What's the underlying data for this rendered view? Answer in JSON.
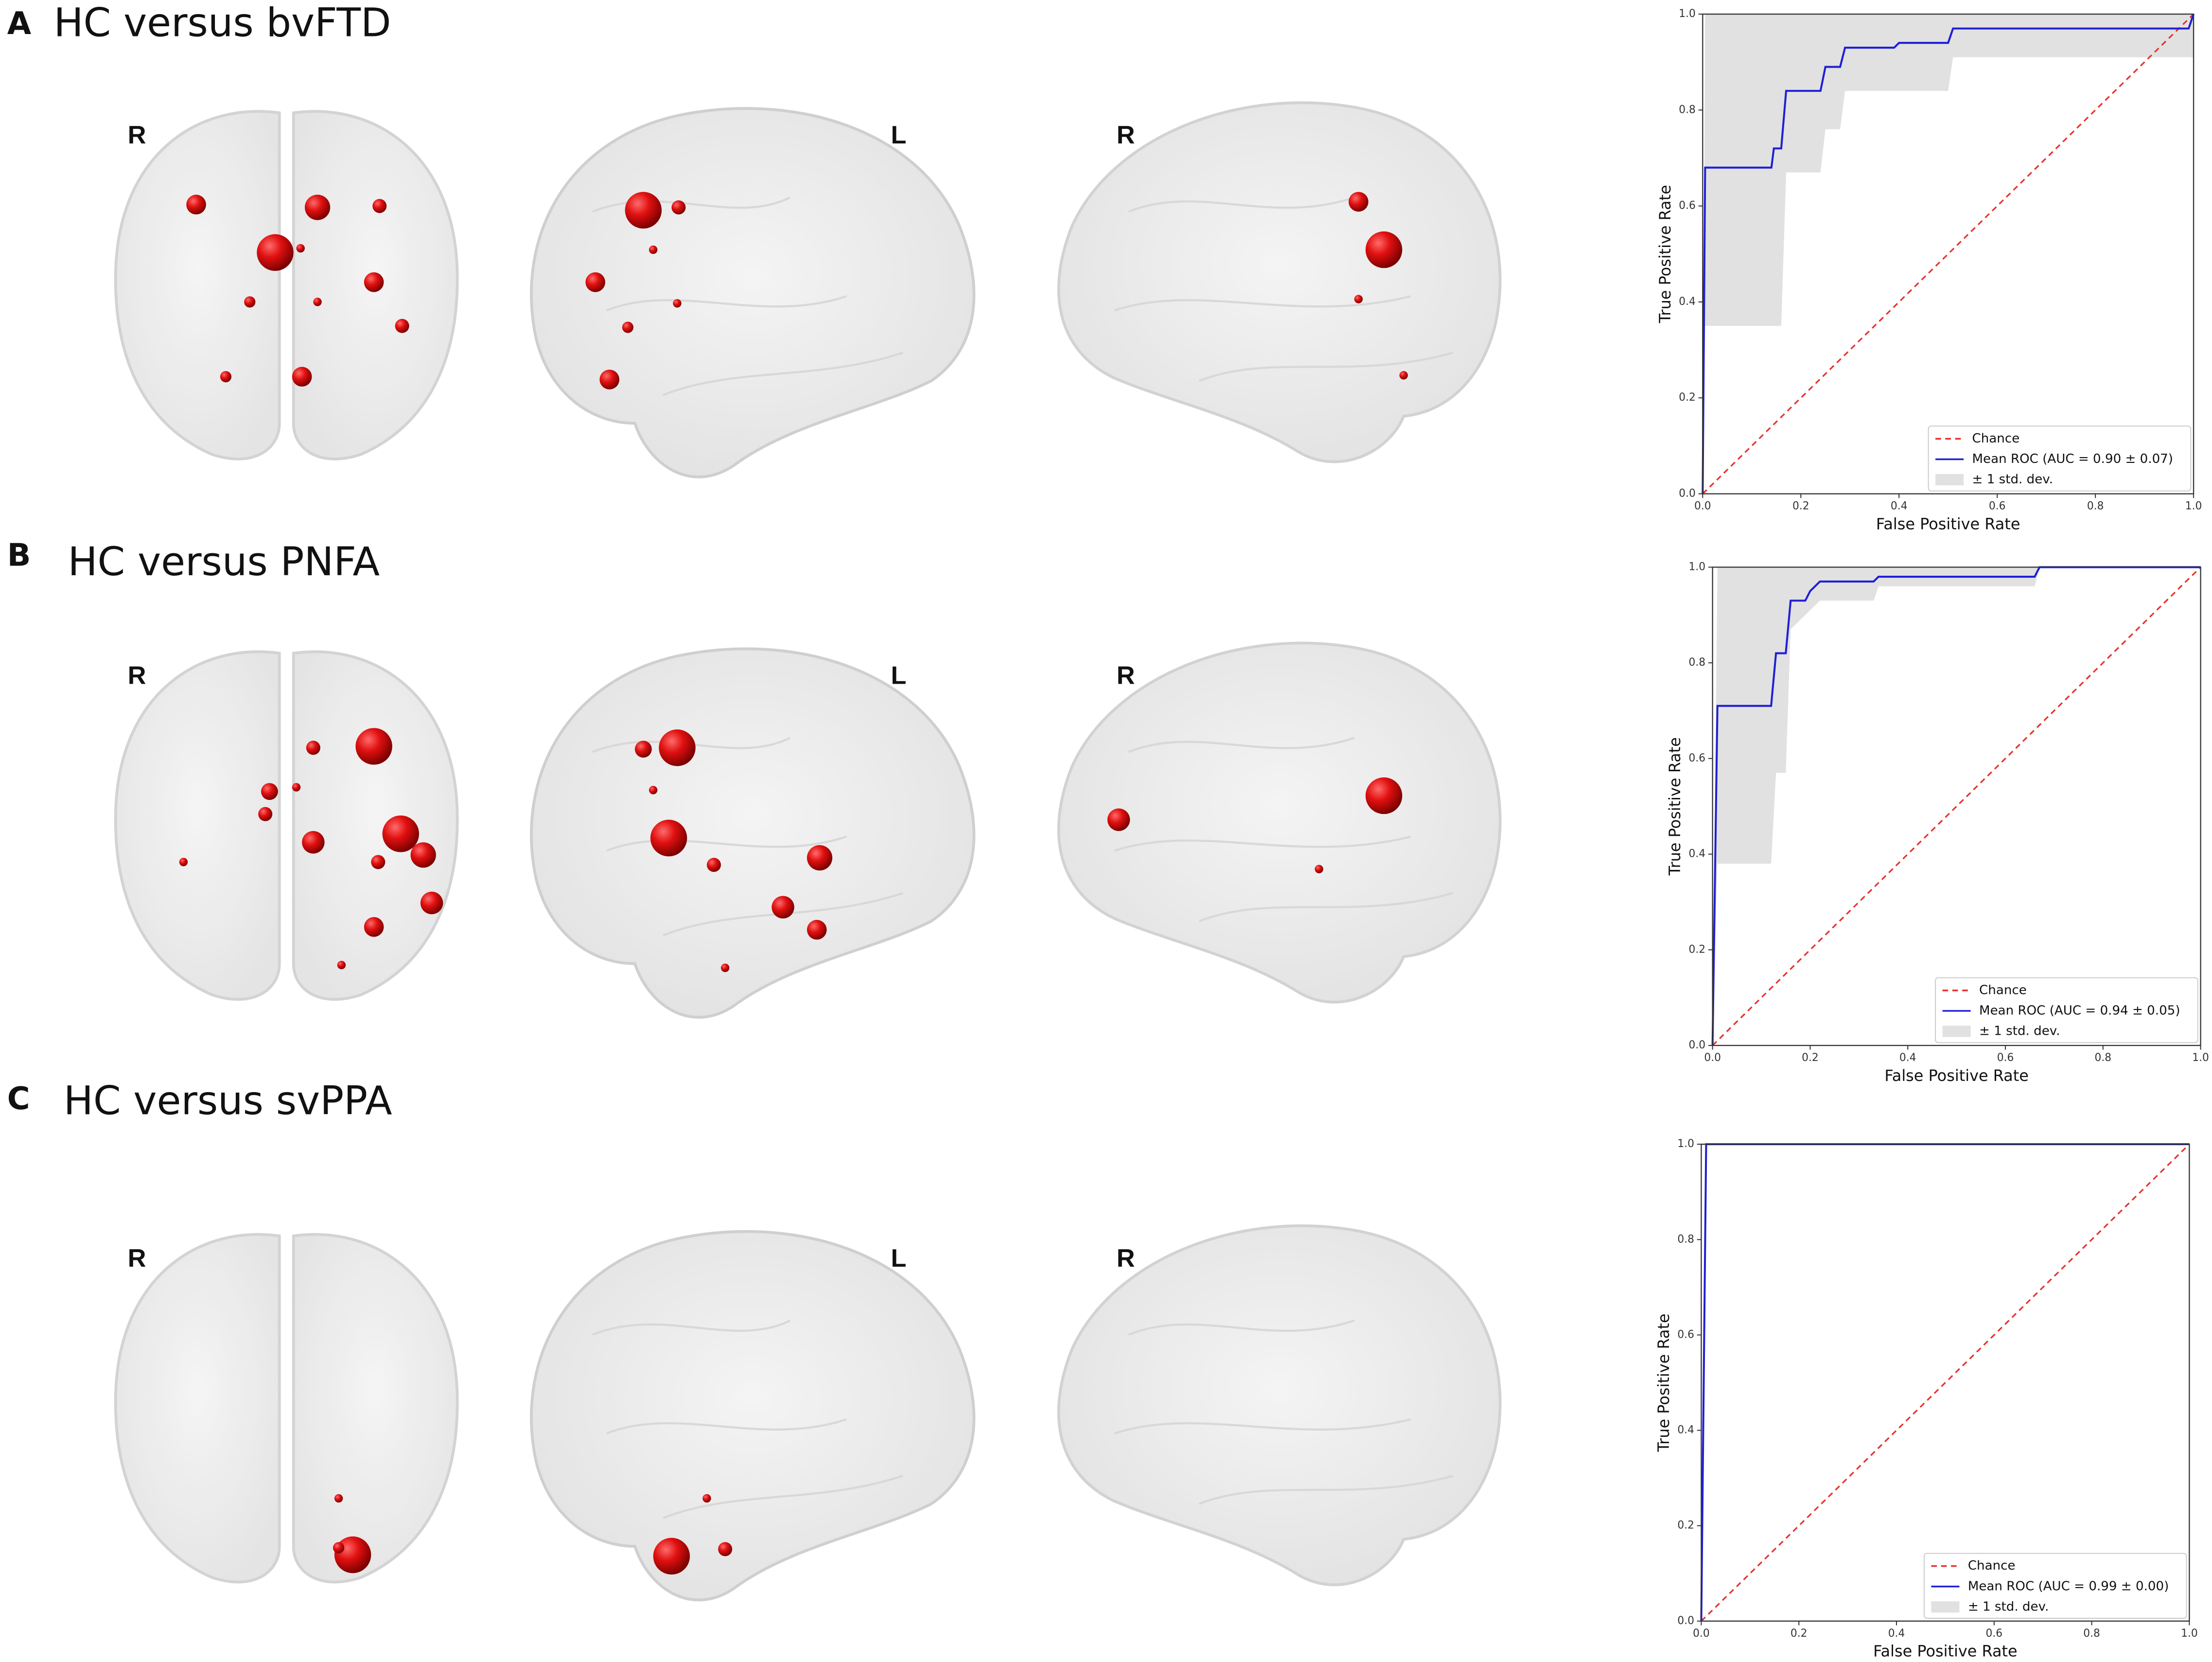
{
  "panels": [
    {
      "letter": "A",
      "title": "HC versus bvFTD",
      "views": [
        "R",
        "L",
        "R"
      ]
    },
    {
      "letter": "B",
      "title": "HC versus PNFA",
      "views": [
        "R",
        "L",
        "R"
      ]
    },
    {
      "letter": "C",
      "title": "HC versus svPPA",
      "views": [
        "R",
        "L",
        "R"
      ]
    }
  ],
  "chart_data": [
    {
      "type": "line",
      "xlabel": "False Positive Rate",
      "ylabel": "True Positive Rate",
      "xlim": [
        0,
        1
      ],
      "ylim": [
        0,
        1
      ],
      "xticks": [
        {
          "value": 0,
          "label": "0.0"
        },
        0.2,
        0.4,
        0.6,
        0.8,
        {
          "value": 1,
          "label": "1.0"
        }
      ],
      "yticks": [
        {
          "value": 0,
          "label": "0.0"
        },
        0.2,
        0.4,
        0.6,
        0.8,
        {
          "value": 1,
          "label": "1.0"
        }
      ],
      "legend": "lower right",
      "series": [
        {
          "name": "Chance",
          "color": "#e8302a",
          "style": "dashed",
          "x": [
            0,
            1
          ],
          "values": [
            0,
            1
          ]
        },
        {
          "name": "Mean ROC (AUC = 0.90 ± 0.07)",
          "color": "#1f1fd6",
          "style": "solid",
          "x": [
            0,
            0.005,
            0.14,
            0.145,
            0.16,
            0.17,
            0.24,
            0.25,
            0.28,
            0.29,
            0.39,
            0.4,
            0.5,
            0.51,
            0.99,
            1
          ],
          "values": [
            0,
            0.68,
            0.68,
            0.72,
            0.72,
            0.84,
            0.84,
            0.89,
            0.89,
            0.93,
            0.93,
            0.94,
            0.94,
            0.97,
            0.97,
            1
          ]
        },
        {
          "name": "± 1 std. dev.",
          "color": "#bdbdbd",
          "style": "band",
          "x": [
            0,
            0.005,
            0.16,
            0.17,
            0.24,
            0.25,
            0.28,
            0.29,
            0.5,
            0.51,
            1
          ],
          "values": [
            0,
            1,
            1,
            1,
            1,
            1,
            1,
            1,
            1,
            1,
            1
          ],
          "lower": [
            0,
            0.35,
            0.35,
            0.67,
            0.67,
            0.76,
            0.76,
            0.84,
            0.84,
            0.91,
            0.91
          ]
        }
      ]
    },
    {
      "type": "line",
      "xlabel": "False Positive Rate",
      "ylabel": "True Positive Rate",
      "xlim": [
        0,
        1
      ],
      "ylim": [
        0,
        1
      ],
      "xticks": [
        {
          "value": 0,
          "label": "0.0"
        },
        0.2,
        0.4,
        0.6,
        0.8,
        {
          "value": 1,
          "label": "1.0"
        }
      ],
      "yticks": [
        {
          "value": 0,
          "label": "0.0"
        },
        0.2,
        0.4,
        0.6,
        0.8,
        {
          "value": 1,
          "label": "1.0"
        }
      ],
      "legend": "lower right",
      "series": [
        {
          "name": "Chance",
          "color": "#e8302a",
          "style": "dashed",
          "x": [
            0,
            1
          ],
          "values": [
            0,
            1
          ]
        },
        {
          "name": "Mean ROC (AUC = 0.94 ± 0.05)",
          "color": "#1f1fd6",
          "style": "solid",
          "x": [
            0,
            0.01,
            0.12,
            0.13,
            0.15,
            0.16,
            0.19,
            0.2,
            0.22,
            0.33,
            0.34,
            0.66,
            0.67,
            1
          ],
          "values": [
            0,
            0.71,
            0.71,
            0.82,
            0.82,
            0.93,
            0.93,
            0.95,
            0.97,
            0.97,
            0.98,
            0.98,
            1,
            1
          ]
        },
        {
          "name": "± 1 std. dev.",
          "color": "#bdbdbd",
          "style": "band",
          "x": [
            0,
            0.01,
            0.12,
            0.13,
            0.15,
            0.16,
            0.22,
            0.33,
            0.34,
            0.66,
            0.67,
            1
          ],
          "values": [
            0,
            1,
            1,
            1,
            1,
            1,
            1,
            1,
            1,
            1,
            1,
            1
          ],
          "lower": [
            0,
            0.38,
            0.38,
            0.57,
            0.57,
            0.87,
            0.93,
            0.93,
            0.96,
            0.96,
            1,
            1
          ]
        }
      ]
    },
    {
      "type": "line",
      "xlabel": "False Positive Rate",
      "ylabel": "True Positive Rate",
      "xlim": [
        0,
        1
      ],
      "ylim": [
        0,
        1
      ],
      "xticks": [
        {
          "value": 0,
          "label": "0.0"
        },
        0.2,
        0.4,
        0.6,
        0.8,
        {
          "value": 1,
          "label": "1.0"
        }
      ],
      "yticks": [
        {
          "value": 0,
          "label": "0.0"
        },
        0.2,
        0.4,
        0.6,
        0.8,
        {
          "value": 1,
          "label": "1.0"
        }
      ],
      "legend": "lower right",
      "series": [
        {
          "name": "Chance",
          "color": "#e8302a",
          "style": "dashed",
          "x": [
            0,
            1
          ],
          "values": [
            0,
            1
          ]
        },
        {
          "name": "Mean ROC (AUC = 0.99 ± 0.00)",
          "color": "#1f1fd6",
          "style": "solid",
          "x": [
            0,
            0.01,
            1
          ],
          "values": [
            0,
            1,
            1
          ]
        },
        {
          "name": "± 1 std. dev.",
          "color": "#bdbdbd",
          "style": "band",
          "x": [
            0,
            0.01,
            1
          ],
          "values": [
            0,
            1,
            1
          ],
          "lower": [
            0,
            1,
            1
          ]
        }
      ]
    }
  ]
}
